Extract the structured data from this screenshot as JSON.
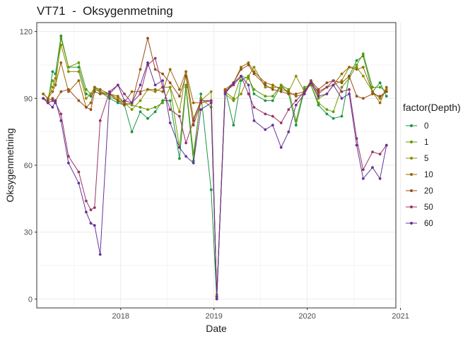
{
  "chart_data": {
    "type": "line",
    "title": "VT71  -  Oksygenmetning",
    "xlabel": "Date",
    "ylabel": "Oksygenmetning",
    "xlim": [
      2017.1,
      2020.95
    ],
    "ylim": [
      -4,
      124
    ],
    "x_ticks": [
      2018,
      2019,
      2020,
      2021
    ],
    "x_tick_labels": [
      "2018",
      "2019",
      "2020",
      "2021"
    ],
    "y_ticks": [
      0,
      30,
      60,
      90,
      120
    ],
    "y_tick_labels": [
      "0",
      "30",
      "60",
      "90",
      "120"
    ],
    "grid": true,
    "legend_position": "right",
    "legend_title": "factor(Depth)",
    "series": [
      {
        "name": "0",
        "color": "#1a9641",
        "x": [
          2017.17,
          2017.22,
          2017.27,
          2017.3,
          2017.36,
          2017.44,
          2017.55,
          2017.63,
          2017.68,
          2017.72,
          2017.78,
          2017.88,
          2017.97,
          2018.04,
          2018.12,
          2018.21,
          2018.29,
          2018.37,
          2018.45,
          2018.53,
          2018.63,
          2018.7,
          2018.78,
          2018.86,
          2018.97,
          2019.03,
          2019.12,
          2019.21,
          2019.29,
          2019.37,
          2019.43,
          2019.55,
          2019.63,
          2019.72,
          2019.8,
          2019.88,
          2019.97,
          2020.04,
          2020.12,
          2020.21,
          2020.28,
          2020.37,
          2020.45,
          2020.53,
          2020.6,
          2020.7,
          2020.78,
          2020.85
        ],
        "y": [
          90,
          88,
          102,
          101,
          118,
          104,
          104,
          92,
          91,
          94,
          93,
          90,
          88,
          87,
          75,
          84,
          81,
          84,
          89,
          89,
          63,
          95,
          62,
          92,
          49,
          0,
          94,
          78,
          98,
          100,
          92,
          89,
          89,
          96,
          92,
          78,
          94,
          96,
          87,
          83,
          81,
          82,
          100,
          107,
          109,
          93,
          97,
          91
        ]
      },
      {
        "name": "1",
        "color": "#669900",
        "x": [
          2017.17,
          2017.22,
          2017.27,
          2017.3,
          2017.36,
          2017.44,
          2017.55,
          2017.63,
          2017.68,
          2017.72,
          2017.78,
          2017.88,
          2017.97,
          2018.04,
          2018.12,
          2018.21,
          2018.29,
          2018.37,
          2018.45,
          2018.53,
          2018.63,
          2018.7,
          2018.78,
          2018.86,
          2018.97,
          2019.03,
          2019.12,
          2019.21,
          2019.29,
          2019.37,
          2019.43,
          2019.55,
          2019.63,
          2019.72,
          2019.8,
          2019.88,
          2019.97,
          2020.04,
          2020.12,
          2020.21,
          2020.28,
          2020.37,
          2020.45,
          2020.53,
          2020.6,
          2020.7,
          2020.78,
          2020.85
        ],
        "y": [
          92,
          90,
          98,
          96,
          117,
          104,
          106,
          94,
          92,
          95,
          93,
          91,
          89,
          88,
          87,
          86,
          85,
          86,
          88,
          95,
          68,
          96,
          65,
          90,
          86,
          2,
          93,
          90,
          100,
          99,
          94,
          91,
          91,
          96,
          94,
          80,
          95,
          96,
          88,
          85,
          84,
          95,
          99,
          105,
          110,
          95,
          95,
          93
        ]
      },
      {
        "name": "5",
        "color": "#8c8c00",
        "x": [
          2017.17,
          2017.22,
          2017.27,
          2017.3,
          2017.36,
          2017.44,
          2017.55,
          2017.63,
          2017.68,
          2017.72,
          2017.78,
          2017.88,
          2017.97,
          2018.04,
          2018.12,
          2018.21,
          2018.29,
          2018.37,
          2018.45,
          2018.53,
          2018.63,
          2018.7,
          2018.78,
          2018.86,
          2018.97,
          2019.03,
          2019.12,
          2019.21,
          2019.29,
          2019.37,
          2019.43,
          2019.55,
          2019.63,
          2019.72,
          2019.8,
          2019.88,
          2019.97,
          2020.04,
          2020.12,
          2020.21,
          2020.28,
          2020.37,
          2020.45,
          2020.53,
          2020.6,
          2020.7,
          2020.78,
          2020.85
        ],
        "y": [
          92,
          90,
          95,
          99,
          114,
          102,
          102,
          90,
          92,
          95,
          93,
          92,
          90,
          88,
          85,
          89,
          94,
          93,
          95,
          95,
          84,
          102,
          81,
          89,
          93,
          1,
          92,
          89,
          92,
          100,
          104,
          95,
          95,
          95,
          93,
          100,
          93,
          97,
          90,
          92,
          96,
          98,
          104,
          104,
          100,
          93,
          90,
          94
        ]
      },
      {
        "name": "10",
        "color": "#996600",
        "x": [
          2017.17,
          2017.22,
          2017.27,
          2017.3,
          2017.36,
          2017.44,
          2017.55,
          2017.63,
          2017.68,
          2017.72,
          2017.78,
          2017.88,
          2017.97,
          2018.04,
          2018.12,
          2018.21,
          2018.29,
          2018.37,
          2018.45,
          2018.53,
          2018.63,
          2018.7,
          2018.78,
          2018.86,
          2018.97,
          2019.03,
          2019.12,
          2019.21,
          2019.29,
          2019.37,
          2019.43,
          2019.55,
          2019.63,
          2019.72,
          2019.8,
          2019.88,
          2019.97,
          2020.04,
          2020.12,
          2020.21,
          2020.28,
          2020.37,
          2020.45,
          2020.53,
          2020.6,
          2020.7,
          2020.78,
          2020.85
        ],
        "y": [
          92,
          90,
          93,
          96,
          106,
          93,
          98,
          86,
          88,
          95,
          94,
          92,
          91,
          88,
          93,
          93,
          94,
          94,
          93,
          103,
          94,
          102,
          88,
          88,
          89,
          1,
          94,
          97,
          104,
          106,
          102,
          97,
          96,
          94,
          93,
          91,
          92,
          98,
          92,
          95,
          96,
          101,
          104,
          103,
          104,
          93,
          88,
          95
        ]
      },
      {
        "name": "20",
        "color": "#994d1a",
        "x": [
          2017.17,
          2017.22,
          2017.27,
          2017.3,
          2017.36,
          2017.44,
          2017.55,
          2017.63,
          2017.68,
          2017.72,
          2017.78,
          2017.88,
          2017.97,
          2018.04,
          2018.12,
          2018.21,
          2018.29,
          2018.37,
          2018.45,
          2018.53,
          2018.63,
          2018.7,
          2018.78,
          2018.86,
          2018.97,
          2019.03,
          2019.12,
          2019.21,
          2019.29,
          2019.37,
          2019.43,
          2019.55,
          2019.63,
          2019.72,
          2019.8,
          2019.88,
          2019.97,
          2020.04,
          2020.12,
          2020.21,
          2020.28,
          2020.37,
          2020.45,
          2020.53,
          2020.6,
          2020.7,
          2020.78,
          2020.85
        ],
        "y": [
          90,
          89,
          90,
          89,
          93,
          94,
          89,
          86,
          85,
          93,
          92,
          92,
          89,
          87,
          88,
          103,
          117,
          103,
          101,
          97,
          91,
          100,
          78,
          88,
          89,
          1,
          93,
          97,
          103,
          105,
          101,
          96,
          94,
          93,
          92,
          92,
          93,
          98,
          94,
          97,
          98,
          97,
          100,
          91,
          90,
          92,
          91,
          93
        ]
      },
      {
        "name": "50",
        "color": "#993366",
        "x": [
          2017.17,
          2017.22,
          2017.27,
          2017.3,
          2017.36,
          2017.44,
          2017.55,
          2017.63,
          2017.68,
          2017.72,
          2017.78,
          2017.88,
          2017.97,
          2018.04,
          2018.12,
          2018.21,
          2018.29,
          2018.37,
          2018.45,
          2018.53,
          2018.63,
          2018.7,
          2018.78,
          2018.86,
          2018.97,
          2019.03,
          2019.12,
          2019.21,
          2019.29,
          2019.37,
          2019.43,
          2019.55,
          2019.63,
          2019.72,
          2019.8,
          2019.88,
          2019.97,
          2020.04,
          2020.12,
          2020.21,
          2020.28,
          2020.37,
          2020.45,
          2020.53,
          2020.6,
          2020.7,
          2020.78,
          2020.85
        ],
        "y": [
          90,
          88,
          89,
          88,
          83,
          64,
          57,
          44,
          40,
          41,
          80,
          93,
          96,
          92,
          88,
          92,
          105,
          108,
          95,
          85,
          82,
          70,
          80,
          89,
          89,
          1,
          93,
          96,
          100,
          92,
          86,
          83,
          82,
          79,
          85,
          89,
          93,
          97,
          93,
          95,
          98,
          93,
          94,
          72,
          58,
          66,
          65,
          69
        ]
      },
      {
        "name": "60",
        "color": "#663399",
        "x": [
          2017.17,
          2017.22,
          2017.27,
          2017.3,
          2017.36,
          2017.44,
          2017.55,
          2017.63,
          2017.68,
          2017.72,
          2017.78,
          2017.88,
          2017.97,
          2018.04,
          2018.12,
          2018.21,
          2018.29,
          2018.37,
          2018.45,
          2018.53,
          2018.63,
          2018.7,
          2018.78,
          2018.86,
          2018.97,
          2019.03,
          2019.12,
          2019.21,
          2019.29,
          2019.37,
          2019.43,
          2019.55,
          2019.63,
          2019.72,
          2019.8,
          2019.88,
          2019.97,
          2020.04,
          2020.12,
          2020.21,
          2020.28,
          2020.37,
          2020.45,
          2020.53,
          2020.6,
          2020.7,
          2020.78,
          2020.85
        ],
        "y": [
          90,
          88,
          86,
          89,
          80,
          61,
          52,
          39,
          34,
          33,
          20,
          92,
          96,
          89,
          88,
          96,
          106,
          96,
          98,
          79,
          68,
          64,
          61,
          85,
          88,
          0,
          92,
          97,
          100,
          96,
          80,
          76,
          78,
          68,
          75,
          87,
          92,
          97,
          91,
          92,
          96,
          90,
          92,
          69,
          54,
          59,
          54,
          69
        ]
      }
    ]
  }
}
